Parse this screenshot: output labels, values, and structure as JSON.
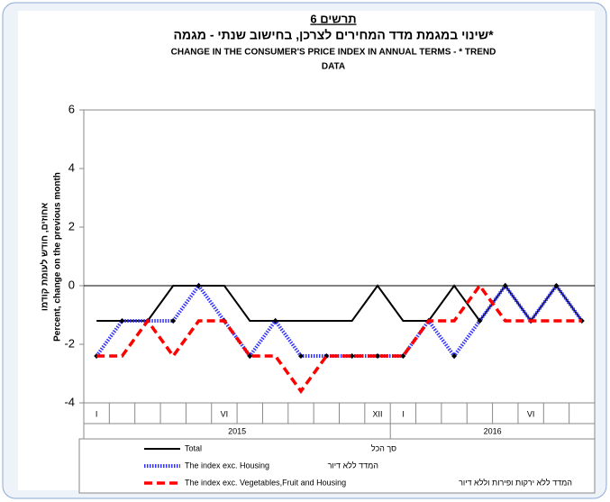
{
  "chart_data": {
    "type": "line",
    "title": "תרשים 6",
    "subtitle": "שינוי במגמת מדד המחירים לצרכן, בחישוב שנתי - מגמה*",
    "title_en": "CHANGE IN THE CONSUMER'S PRICE INDEX IN ANNUAL TERMS -  * TREND",
    "title_en_2": "DATA",
    "y_label": "Percent, change on the previous month",
    "y_label_he": "אחוזים, חודש לעומת קודמו",
    "categories": [
      "I",
      null,
      null,
      null,
      null,
      "VI",
      null,
      null,
      null,
      null,
      null,
      "XII",
      "I",
      null,
      null,
      null,
      null,
      "VI",
      null,
      null
    ],
    "years": [
      "2015",
      "2016"
    ],
    "ylim": [
      -4,
      6
    ],
    "yticks": [
      -4,
      -2,
      0,
      2,
      4,
      6
    ],
    "series": [
      {
        "name": "Total",
        "name_he": "סך הכל",
        "color": "#000000",
        "values": [
          -1.2,
          -1.2,
          -1.2,
          0,
          0,
          0,
          -1.2,
          -1.2,
          -1.2,
          -1.2,
          -1.2,
          0,
          -1.2,
          -1.2,
          0,
          -1.2,
          0,
          -1.2,
          0,
          -1.2
        ]
      },
      {
        "name": "The index exc. Housing",
        "name_he": "המדד ללא דיור",
        "color": "#3333ff",
        "values": [
          -2.4,
          -1.2,
          -1.2,
          -1.2,
          0,
          -1.2,
          -2.4,
          -1.2,
          -2.4,
          -2.4,
          -2.4,
          -2.4,
          -2.4,
          -1.2,
          -2.4,
          -1.2,
          0,
          -1.2,
          0,
          -1.2
        ]
      },
      {
        "name": "The index exc. Vegetables,Fruit and Housing",
        "name_he": "המדד ללא ירקות ופירות וללא דיור",
        "color": "#ff0000",
        "values": [
          -2.4,
          -2.4,
          -1.2,
          -2.4,
          -1.2,
          -1.2,
          -2.4,
          -2.4,
          -3.6,
          -2.4,
          -2.4,
          -2.4,
          -2.4,
          -1.2,
          -1.2,
          0,
          -1.2,
          -1.2,
          -1.2,
          -1.2
        ]
      }
    ]
  }
}
